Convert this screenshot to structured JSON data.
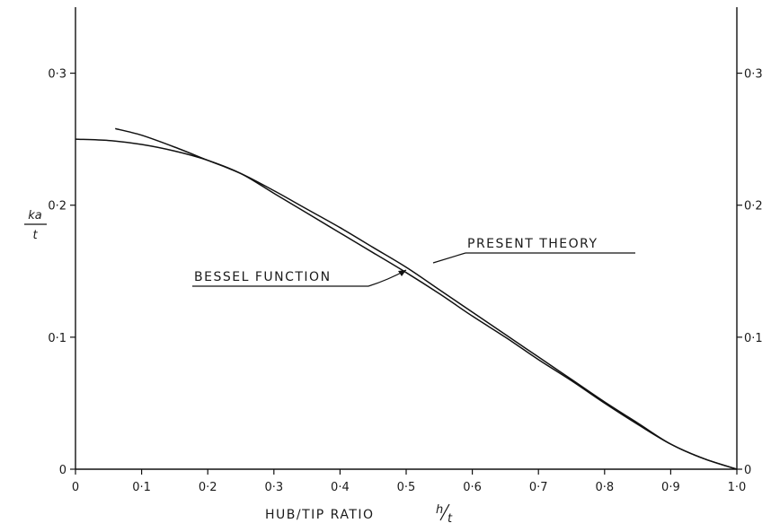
{
  "chart_data": {
    "type": "line",
    "xlabel": "HUB/TIP RATIO",
    "xlabel_symbol_num": "h",
    "xlabel_symbol_den": "t",
    "ylabel_num": "ka",
    "ylabel_den": "t",
    "xlim": [
      0,
      1.0
    ],
    "ylim": [
      0,
      0.35
    ],
    "x_ticks": [
      "0",
      "0·1",
      "0·2",
      "0·3",
      "0·4",
      "0·5",
      "0·6",
      "0·7",
      "0·8",
      "0·9",
      "1·0"
    ],
    "y_ticks": [
      "0",
      "0·1",
      "0·2",
      "0·3"
    ],
    "grid": false,
    "series": [
      {
        "name": "PRESENT THEORY",
        "x": [
          0.06,
          0.1,
          0.15,
          0.2,
          0.25,
          0.3,
          0.35,
          0.4,
          0.45,
          0.5,
          0.55,
          0.6,
          0.65,
          0.7,
          0.75,
          0.8,
          0.85,
          0.9,
          0.95,
          1.0
        ],
        "y": [
          0.258,
          0.253,
          0.244,
          0.234,
          0.224,
          0.211,
          0.197,
          0.183,
          0.168,
          0.153,
          0.136,
          0.119,
          0.102,
          0.085,
          0.068,
          0.051,
          0.035,
          0.019,
          0.008,
          0.0
        ]
      },
      {
        "name": "BESSEL FUNCTION",
        "x": [
          0.0,
          0.05,
          0.1,
          0.15,
          0.2,
          0.25,
          0.3,
          0.35,
          0.4,
          0.45,
          0.5,
          0.55,
          0.6,
          0.65,
          0.7,
          0.75,
          0.8,
          0.85,
          0.9,
          0.95,
          1.0
        ],
        "y": [
          0.25,
          0.249,
          0.246,
          0.241,
          0.234,
          0.224,
          0.209,
          0.194,
          0.179,
          0.164,
          0.149,
          0.133,
          0.116,
          0.1,
          0.083,
          0.067,
          0.05,
          0.034,
          0.019,
          0.008,
          0.0
        ]
      }
    ]
  }
}
